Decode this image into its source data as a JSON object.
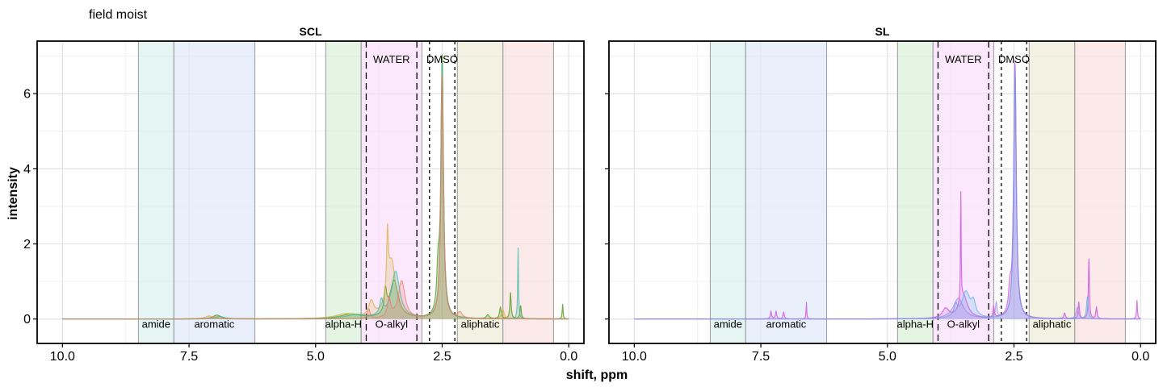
{
  "chart_data": {
    "type": "area",
    "title": "field moist",
    "xlabel": "shift, ppm",
    "ylabel": "intensity",
    "x_reversed": true,
    "xlim": [
      10.5,
      -0.3
    ],
    "ylim": [
      -0.65,
      7.4
    ],
    "x_ticks": [
      10.0,
      7.5,
      5.0,
      2.5,
      0.0
    ],
    "x_tick_labels": [
      "10.0",
      "7.5",
      "5.0",
      "2.5",
      "0.0"
    ],
    "y_ticks": [
      0,
      2,
      4,
      6
    ],
    "y_tick_labels": [
      "0",
      "2",
      "4",
      "6"
    ],
    "grid": true,
    "legend": "none",
    "regions": [
      {
        "label": "amide",
        "from": 8.5,
        "to": 7.8,
        "color": "#d6f0ee"
      },
      {
        "label": "aromatic",
        "from": 7.8,
        "to": 6.2,
        "color": "#dde8fb"
      },
      {
        "label": "alpha-H",
        "from": 4.8,
        "to": 4.1,
        "color": "#d6efd6"
      },
      {
        "label": "O-alkyl",
        "from": 4.1,
        "to": 2.9,
        "color": "#fbdcfb"
      },
      {
        "label": "aliphatic",
        "from": 2.2,
        "to": 1.3,
        "color": "#ece9d3"
      },
      {
        "label": "",
        "from": 1.3,
        "to": 0.3,
        "color": "#fbdede"
      }
    ],
    "dashed_lines": [
      {
        "label": "WATER",
        "from": 4.0,
        "to": 3.0,
        "style": "long-dash"
      },
      {
        "label": "DMSO",
        "from": 2.75,
        "to": 2.25,
        "style": "short-dash"
      }
    ],
    "panels": [
      {
        "strip": "SCL",
        "series": [
          {
            "color": "#5aa12c",
            "opacity": 0.85,
            "peaks": [
              [
                2.5,
                6.9,
                0.03
              ],
              [
                2.58,
                1.1,
                0.03
              ],
              [
                3.45,
                1.0,
                0.1
              ],
              [
                3.62,
                0.6,
                0.03
              ],
              [
                4.3,
                0.12,
                0.25
              ],
              [
                6.95,
                0.1,
                0.1
              ],
              [
                1.15,
                0.7,
                0.015
              ],
              [
                0.95,
                0.35,
                0.015
              ],
              [
                1.35,
                0.3,
                0.02
              ],
              [
                0.12,
                0.4,
                0.01
              ],
              [
                1.6,
                0.1,
                0.03
              ]
            ]
          },
          {
            "color": "#d8b24a",
            "opacity": 0.75,
            "peaks": [
              [
                2.5,
                6.6,
                0.03
              ],
              [
                3.5,
                1.5,
                0.1
              ],
              [
                3.58,
                1.6,
                0.02
              ],
              [
                3.9,
                0.4,
                0.06
              ],
              [
                4.4,
                0.12,
                0.25
              ],
              [
                7.1,
                0.08,
                0.1
              ],
              [
                1.3,
                0.25,
                0.03
              ]
            ]
          },
          {
            "color": "#3ab9a2",
            "opacity": 0.7,
            "peaks": [
              [
                2.5,
                6.8,
                0.03
              ],
              [
                3.42,
                1.25,
                0.1
              ],
              [
                3.7,
                0.4,
                0.04
              ],
              [
                1.0,
                1.9,
                0.01
              ],
              [
                4.2,
                0.1,
                0.25
              ],
              [
                6.9,
                0.07,
                0.1
              ]
            ]
          },
          {
            "color": "#ec7a6a",
            "opacity": 0.7,
            "peaks": [
              [
                2.5,
                6.5,
                0.03
              ],
              [
                3.3,
                1.0,
                0.08
              ],
              [
                3.55,
                0.5,
                0.04
              ],
              [
                3.95,
                0.25,
                0.03
              ],
              [
                2.15,
                0.15,
                0.05
              ],
              [
                7.0,
                0.05,
                0.1
              ]
            ]
          }
        ]
      },
      {
        "strip": "SL",
        "series": [
          {
            "color": "#cf5fe0",
            "opacity": 0.85,
            "peaks": [
              [
                2.48,
                6.85,
                0.03
              ],
              [
                2.58,
                0.6,
                0.03
              ],
              [
                3.55,
                2.9,
                0.008
              ],
              [
                3.5,
                0.6,
                0.1
              ],
              [
                1.02,
                1.6,
                0.012
              ],
              [
                1.22,
                0.45,
                0.015
              ],
              [
                0.87,
                0.3,
                0.015
              ],
              [
                1.5,
                0.15,
                0.02
              ],
              [
                2.9,
                0.3,
                0.015
              ],
              [
                7.3,
                0.2,
                0.015
              ],
              [
                7.2,
                0.2,
                0.015
              ],
              [
                7.05,
                0.18,
                0.015
              ],
              [
                6.6,
                0.45,
                0.008
              ],
              [
                0.07,
                0.5,
                0.01
              ],
              [
                3.85,
                0.25,
                0.08
              ]
            ]
          },
          {
            "color": "#5bb0e8",
            "opacity": 0.7,
            "peaks": [
              [
                2.48,
                6.6,
                0.03
              ],
              [
                3.45,
                0.7,
                0.1
              ],
              [
                3.3,
                0.35,
                0.05
              ],
              [
                1.05,
                0.6,
                0.02
              ],
              [
                3.65,
                0.3,
                0.04
              ]
            ]
          },
          {
            "color": "#9a86e8",
            "opacity": 0.65,
            "peaks": [
              [
                2.48,
                6.7,
                0.03
              ],
              [
                3.6,
                0.55,
                0.12
              ],
              [
                2.85,
                0.4,
                0.02
              ],
              [
                1.25,
                0.3,
                0.03
              ]
            ]
          }
        ]
      }
    ]
  }
}
